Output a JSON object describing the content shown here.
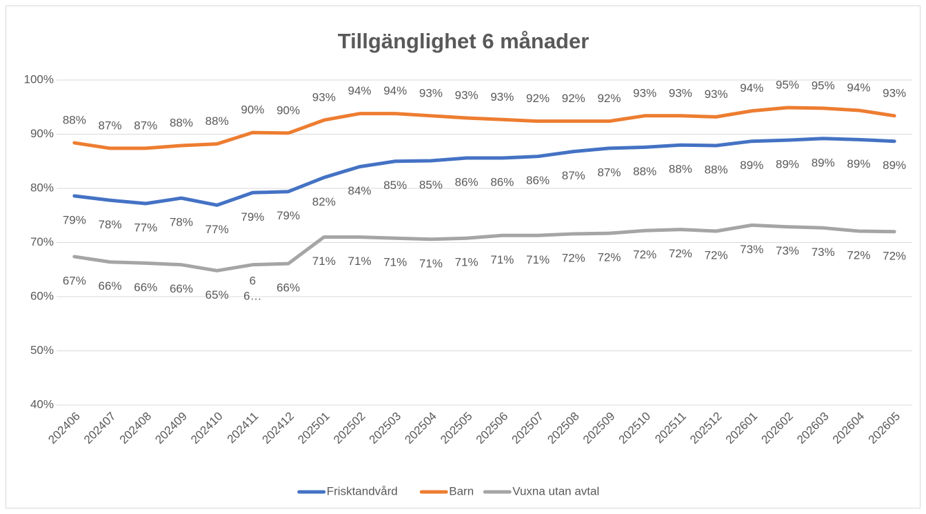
{
  "chart_data": {
    "type": "line",
    "title": "Tillgänglighet 6 månader",
    "categories": [
      "202406",
      "202407",
      "202408",
      "202409",
      "202410",
      "202411",
      "202412",
      "202501",
      "202502",
      "202503",
      "202504",
      "202505",
      "202506",
      "202507",
      "202508",
      "202509",
      "202510",
      "202511",
      "202512",
      "202601",
      "202602",
      "202603",
      "202604",
      "202605"
    ],
    "series": [
      {
        "name": "Frisktandvård",
        "color": "#4472c4",
        "values": [
          78.6,
          77.8,
          77.2,
          78.2,
          76.9,
          79.2,
          79.4,
          82.0,
          84.0,
          85.0,
          85.1,
          85.6,
          85.6,
          85.9,
          86.8,
          87.4,
          87.6,
          88.0,
          87.9,
          88.7,
          88.9,
          89.2,
          89.0,
          88.7
        ],
        "value_labels": [
          "79%",
          "78%",
          "77%",
          "78%",
          "77%",
          "79%",
          "79%",
          "82%",
          "84%",
          "85%",
          "85%",
          "86%",
          "86%",
          "86%",
          "87%",
          "87%",
          "88%",
          "88%",
          "88%",
          "89%",
          "89%",
          "89%",
          "89%",
          "89%"
        ]
      },
      {
        "name": "Barn",
        "color": "#ed7d31",
        "values": [
          88.4,
          87.4,
          87.4,
          87.9,
          88.2,
          90.3,
          90.2,
          92.6,
          93.8,
          93.8,
          93.4,
          93.0,
          92.7,
          92.4,
          92.4,
          92.4,
          93.4,
          93.4,
          93.2,
          94.3,
          94.9,
          94.8,
          94.4,
          93.4
        ],
        "value_labels": [
          "88%",
          "87%",
          "87%",
          "88%",
          "88%",
          "90%",
          "90%",
          "93%",
          "94%",
          "94%",
          "93%",
          "93%",
          "93%",
          "92%",
          "92%",
          "92%",
          "93%",
          "93%",
          "93%",
          "94%",
          "95%",
          "95%",
          "94%",
          "93%"
        ]
      },
      {
        "name": "Vuxna utan avtal",
        "color": "#a5a5a5",
        "values": [
          67.4,
          66.4,
          66.2,
          65.9,
          64.8,
          65.9,
          66.1,
          71.0,
          71.0,
          70.8,
          70.6,
          70.8,
          71.3,
          71.3,
          71.6,
          71.7,
          72.2,
          72.4,
          72.1,
          73.2,
          72.9,
          72.7,
          72.1,
          72.0
        ],
        "value_labels": [
          "67%",
          "66%",
          "66%",
          "66%",
          "65%",
          "6\n6…",
          "66%",
          "71%",
          "71%",
          "71%",
          "71%",
          "71%",
          "71%",
          "71%",
          "72%",
          "72%",
          "72%",
          "72%",
          "72%",
          "73%",
          "73%",
          "73%",
          "72%",
          "72%"
        ]
      }
    ],
    "ylim": [
      40,
      100
    ],
    "yticks": [
      {
        "value": 40,
        "label": "40%"
      },
      {
        "value": 50,
        "label": "50%"
      },
      {
        "value": 60,
        "label": "60%"
      },
      {
        "value": 70,
        "label": "70%"
      },
      {
        "value": 80,
        "label": "80%"
      },
      {
        "value": 90,
        "label": "90%"
      },
      {
        "value": 100,
        "label": "100%"
      }
    ],
    "grid": true,
    "legend": "bottom"
  }
}
